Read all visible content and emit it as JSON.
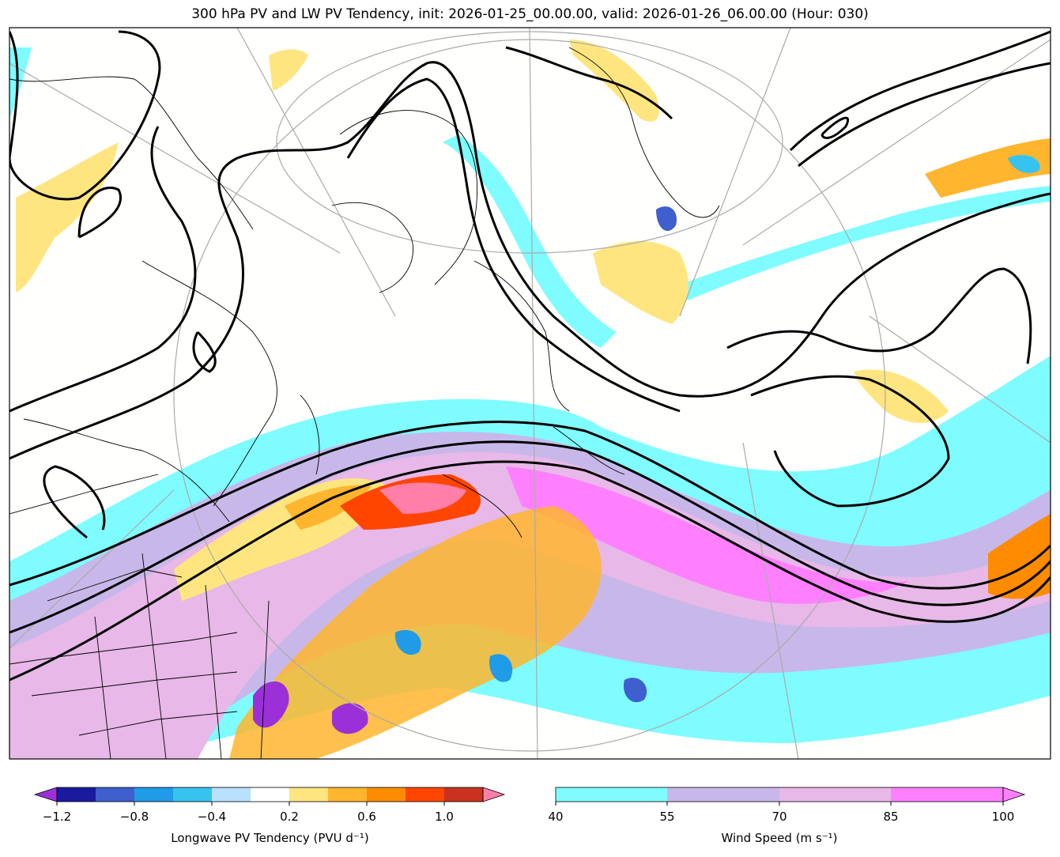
{
  "title": "300 hPa PV and LW PV Tendency, init: 2026-01-25_00.00.00, valid: 2026-01-26_06.00.00 (Hour: 030)",
  "colorbar_left": {
    "label": "Longwave PV Tendency (PVU d$^{-1}$)",
    "label_display": "Longwave PV Tendency (PVU d⁻¹)",
    "min": -1.2,
    "max": 1.2,
    "ticks": [
      "−1.2",
      "−0.8",
      "−0.4",
      "0.2",
      "0.6",
      "1.0"
    ],
    "tick_values": [
      -1.2,
      -0.8,
      -0.4,
      0.2,
      0.6,
      1.0
    ],
    "colors": [
      "#9b30d9",
      "#1a1a9e",
      "#3f5fcf",
      "#1f9be8",
      "#37c3f0",
      "#b8e0ff",
      "#ffffff",
      "#ffe580",
      "#ffb52e",
      "#ff8c00",
      "#ff4500",
      "#c8321e",
      "#ff7fa8"
    ]
  },
  "colorbar_right": {
    "label_display": "Wind Speed (m s⁻¹)",
    "ticks": [
      "40",
      "55",
      "70",
      "85",
      "100"
    ],
    "tick_values": [
      40,
      55,
      70,
      85,
      100
    ],
    "colors": [
      "#7ffcff",
      "#c8b8ea",
      "#e8b8e8",
      "#ff80ff"
    ]
  }
}
